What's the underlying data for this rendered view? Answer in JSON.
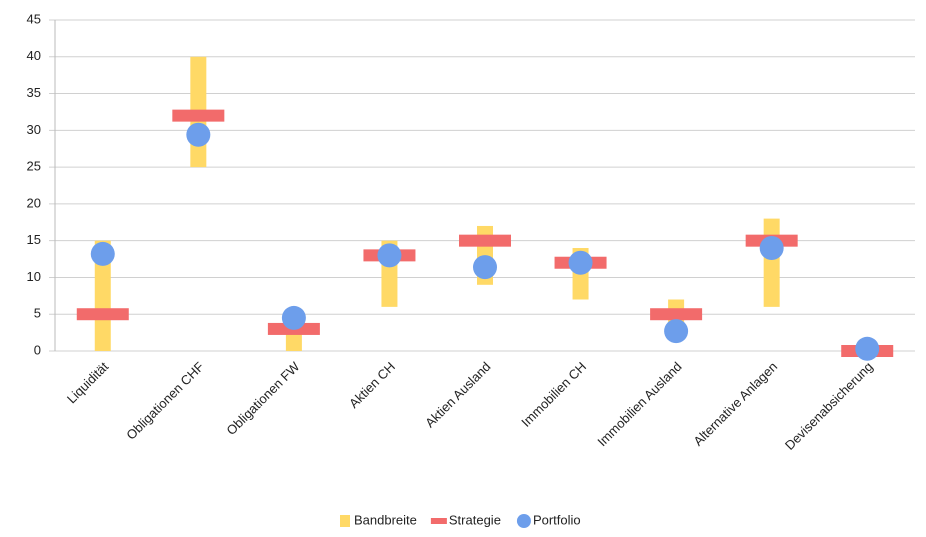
{
  "chart_data": {
    "type": "range",
    "categories": [
      "Liquidität",
      "Obligationen CHF",
      "Obligationen FW",
      "Aktien CH",
      "Aktien Ausland",
      "Immobilien CH",
      "Immobilien Ausland",
      "Alternative Anlagen",
      "Devisenabsicherung"
    ],
    "series": [
      {
        "name": "Bandbreite",
        "type": "range",
        "color": "#ffd966",
        "low": [
          0,
          25,
          0,
          6,
          9,
          7,
          3,
          6,
          0
        ],
        "high": [
          15,
          40,
          5,
          15,
          17,
          14,
          7,
          18,
          0
        ]
      },
      {
        "name": "Strategie",
        "type": "dash",
        "color": "#f26b6b",
        "values": [
          5,
          32,
          3,
          13,
          15,
          12,
          5,
          15,
          0
        ]
      },
      {
        "name": "Portfolio",
        "type": "dot",
        "color": "#6d9eeb",
        "values": [
          13.2,
          29.4,
          4.5,
          13,
          11.4,
          12,
          2.7,
          14,
          0.3
        ]
      }
    ],
    "ylim": [
      0,
      45
    ],
    "yticks": [
      0,
      5,
      10,
      15,
      20,
      25,
      30,
      35,
      40,
      45
    ],
    "grid": true,
    "legend": "bottom"
  }
}
